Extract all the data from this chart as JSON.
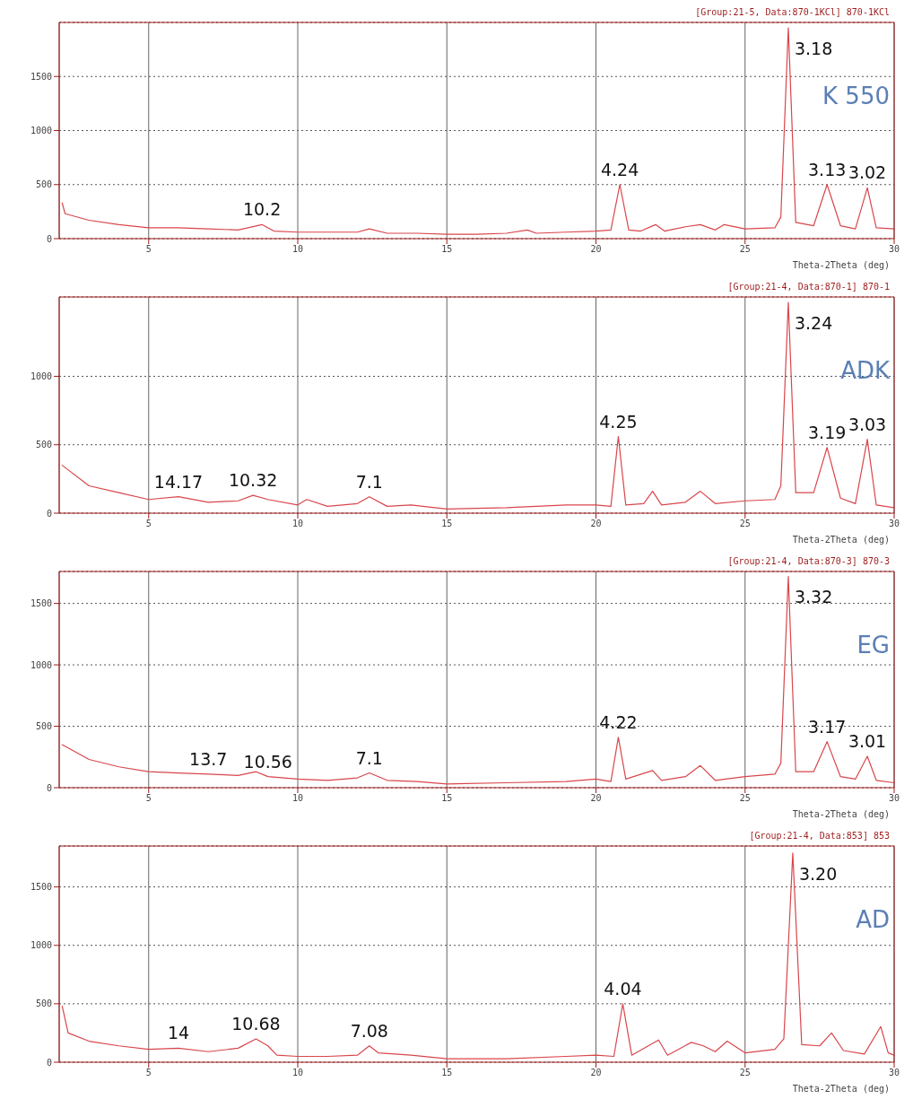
{
  "chart_data": [
    {
      "type": "line",
      "title": "K 550",
      "subtitle": "[Group:21-5, Data:870-1KCl] 870-1KCl",
      "xlabel": "Theta-2Theta (deg)",
      "xlim": [
        2,
        30
      ],
      "xticks": [
        5,
        10,
        15,
        20,
        25,
        30
      ],
      "ylim": [
        0,
        2000
      ],
      "yticks": [
        0,
        500,
        1000,
        1500
      ],
      "grid": true,
      "series": [
        {
          "color": "#d9464b",
          "x": [
            2.1,
            2.2,
            3,
            4,
            5,
            6,
            7,
            8,
            8.8,
            9.2,
            10,
            11,
            12,
            12.4,
            13,
            14,
            15,
            16,
            17,
            17.7,
            18,
            19,
            20,
            20.5,
            20.8,
            21.1,
            21.5,
            22,
            22.3,
            23,
            23.5,
            24,
            24.3,
            25,
            26,
            26.2,
            26.45,
            26.7,
            27.3,
            27.75,
            28.2,
            28.7,
            29.1,
            29.4,
            30
          ],
          "values": [
            330,
            230,
            170,
            130,
            100,
            100,
            90,
            80,
            130,
            70,
            60,
            60,
            60,
            90,
            50,
            50,
            40,
            40,
            50,
            80,
            50,
            60,
            70,
            80,
            500,
            80,
            70,
            130,
            70,
            110,
            130,
            80,
            130,
            90,
            100,
            200,
            1950,
            150,
            120,
            500,
            120,
            90,
            470,
            100,
            90
          ]
        }
      ],
      "annotations": [
        {
          "text": "10.2",
          "x": 8.8,
          "y": 130
        },
        {
          "text": "4.24",
          "x": 20.8,
          "y": 500
        },
        {
          "text": "3.18",
          "x": 26.45,
          "y": 1950
        },
        {
          "text": "3.13",
          "x": 27.75,
          "y": 500
        },
        {
          "text": "3.02",
          "x": 29.1,
          "y": 470
        }
      ]
    },
    {
      "type": "line",
      "title": "ADK",
      "subtitle": "[Group:21-4, Data:870-1] 870-1",
      "xlabel": "Theta-2Theta (deg)",
      "xlim": [
        2,
        30
      ],
      "xticks": [
        5,
        10,
        15,
        20,
        25,
        30
      ],
      "ylim": [
        0,
        1580
      ],
      "yticks": [
        0,
        500,
        1000
      ],
      "grid": true,
      "series": [
        {
          "color": "#d9464b",
          "x": [
            2.1,
            3,
            4,
            5,
            6,
            7,
            8,
            8.5,
            9,
            10,
            10.3,
            11,
            12,
            12.4,
            13,
            13.8,
            15,
            17,
            19,
            20,
            20.5,
            20.75,
            21,
            21.6,
            21.9,
            22.2,
            23,
            23.5,
            24,
            25,
            26,
            26.2,
            26.45,
            26.7,
            27.3,
            27.75,
            28.2,
            28.7,
            29.1,
            29.4,
            30
          ],
          "values": [
            350,
            200,
            150,
            100,
            120,
            80,
            90,
            130,
            100,
            60,
            100,
            50,
            70,
            120,
            50,
            60,
            30,
            40,
            60,
            60,
            50,
            560,
            60,
            70,
            160,
            60,
            80,
            160,
            70,
            90,
            100,
            200,
            1540,
            150,
            150,
            480,
            110,
            70,
            540,
            60,
            40
          ]
        }
      ],
      "annotations": [
        {
          "text": "14.17",
          "x": 6,
          "y": 120
        },
        {
          "text": "10.32",
          "x": 8.5,
          "y": 130
        },
        {
          "text": "7.1",
          "x": 12.4,
          "y": 120
        },
        {
          "text": "4.25",
          "x": 20.75,
          "y": 560
        },
        {
          "text": "3.24",
          "x": 26.45,
          "y": 1540
        },
        {
          "text": "3.19",
          "x": 27.75,
          "y": 480
        },
        {
          "text": "3.03",
          "x": 29.1,
          "y": 540
        }
      ]
    },
    {
      "type": "line",
      "title": "EG",
      "subtitle": "[Group:21-4, Data:870-3] 870-3",
      "xlabel": "Theta-2Theta (deg)",
      "xlim": [
        2,
        30
      ],
      "xticks": [
        5,
        10,
        15,
        20,
        25,
        30
      ],
      "ylim": [
        0,
        1760
      ],
      "yticks": [
        0,
        500,
        1000,
        1500
      ],
      "grid": true,
      "series": [
        {
          "color": "#d9464b",
          "x": [
            2.1,
            3,
            4,
            5,
            6,
            7,
            8,
            8.6,
            9,
            10,
            11,
            12,
            12.4,
            13,
            14,
            15,
            17,
            19,
            20,
            20.5,
            20.75,
            21,
            21.9,
            22.2,
            23,
            23.5,
            24,
            25,
            26,
            26.2,
            26.45,
            26.7,
            27.3,
            27.75,
            28.2,
            28.7,
            29.1,
            29.4,
            30
          ],
          "values": [
            350,
            230,
            170,
            130,
            120,
            110,
            100,
            130,
            90,
            70,
            60,
            80,
            120,
            60,
            50,
            30,
            40,
            50,
            70,
            50,
            410,
            70,
            140,
            60,
            90,
            180,
            60,
            90,
            110,
            200,
            1720,
            130,
            130,
            375,
            90,
            70,
            255,
            60,
            40
          ]
        }
      ],
      "annotations": [
        {
          "text": "13.7",
          "x": 7,
          "y": 110
        },
        {
          "text": "10.56",
          "x": 9,
          "y": 90
        },
        {
          "text": "7.1",
          "x": 12.4,
          "y": 120
        },
        {
          "text": "4.22",
          "x": 20.75,
          "y": 410
        },
        {
          "text": "3.32",
          "x": 26.45,
          "y": 1720
        },
        {
          "text": "3.17",
          "x": 27.75,
          "y": 375
        },
        {
          "text": "3.01",
          "x": 29.1,
          "y": 255
        }
      ]
    },
    {
      "type": "line",
      "title": "AD",
      "subtitle": "[Group:21-4, Data:853] 853",
      "xlabel": "Theta-2Theta (deg)",
      "xlim": [
        2,
        30
      ],
      "xticks": [
        5,
        10,
        15,
        20,
        25,
        30
      ],
      "ylim": [
        0,
        1850
      ],
      "yticks": [
        0,
        500,
        1000,
        1500
      ],
      "grid": true,
      "series": [
        {
          "color": "#d9464b",
          "x": [
            2.1,
            2.3,
            3,
            4,
            5,
            6,
            7,
            8,
            8.6,
            9,
            9.3,
            10,
            11,
            12,
            12.4,
            12.7,
            13.8,
            15,
            17,
            19,
            20,
            20.6,
            20.9,
            21.2,
            22.1,
            22.4,
            23.2,
            23.6,
            24,
            24.4,
            25,
            26,
            26.3,
            26.6,
            26.9,
            27.5,
            27.9,
            28.3,
            29,
            29.55,
            29.8,
            30
          ],
          "values": [
            480,
            250,
            180,
            140,
            110,
            120,
            90,
            120,
            200,
            140,
            60,
            50,
            50,
            60,
            140,
            80,
            60,
            30,
            30,
            50,
            60,
            50,
            500,
            60,
            190,
            60,
            170,
            140,
            90,
            180,
            80,
            110,
            200,
            1790,
            150,
            140,
            250,
            100,
            70,
            305,
            80,
            60
          ]
        }
      ],
      "annotations": [
        {
          "text": "14",
          "x": 6,
          "y": 120
        },
        {
          "text": "10.68",
          "x": 8.6,
          "y": 200
        },
        {
          "text": "7.08",
          "x": 12.4,
          "y": 140
        },
        {
          "text": "4.04",
          "x": 20.9,
          "y": 500
        },
        {
          "text": "3.20",
          "x": 26.6,
          "y": 1790
        }
      ]
    }
  ]
}
